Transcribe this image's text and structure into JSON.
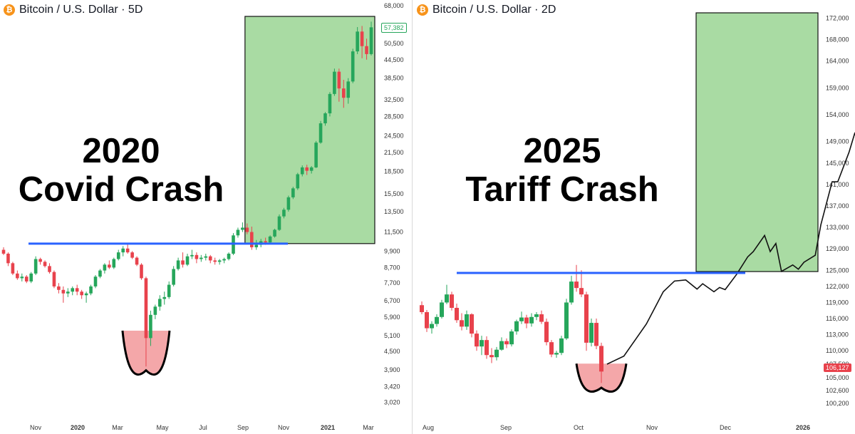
{
  "colors": {
    "up": "#26a65b",
    "down": "#e8424c",
    "blue_line": "#2962ff",
    "green_box": "#a9dba3",
    "red_bowl": "#f4a7a9",
    "btc_orange": "#f7931a"
  },
  "left": {
    "symbol_icon": "bitcoin-icon",
    "header": "Bitcoin / U.S. Dollar · 5D",
    "title_line1": "2020",
    "title_line2": "Covid Crash",
    "last_price_label": "57,382"
  },
  "right": {
    "symbol_icon": "bitcoin-icon",
    "header": "Bitcoin / U.S. Dollar · 2D",
    "title_line1": "2025",
    "title_line2": "Tariff Crash",
    "last_price_label": "106,127"
  },
  "chart_data": [
    {
      "type": "candlestick",
      "title": "Bitcoin / U.S. Dollar · 5D",
      "annotation": "2020 Covid Crash",
      "y_scale": "log",
      "ylim": [
        2800,
        68000
      ],
      "yticks": [
        68000,
        50500,
        44500,
        38500,
        32500,
        28500,
        24500,
        21500,
        18500,
        15500,
        13500,
        11500,
        9900,
        8700,
        7700,
        6700,
        5900,
        5100,
        4500,
        3900,
        3420,
        3020
      ],
      "ytick_labels": [
        "68,000",
        "50,500",
        "44,500",
        "38,500",
        "32,500",
        "28,500",
        "24,500",
        "21,500",
        "18,500",
        "15,500",
        "13,500",
        "11,500",
        "9,900",
        "8,700",
        "7,700",
        "6,700",
        "5,900",
        "5,100",
        "4,500",
        "3,900",
        "3,420",
        "3,020"
      ],
      "xticks": [
        "Nov",
        "2020",
        "Mar",
        "May",
        "Jul",
        "Sep",
        "Nov",
        "2021",
        "Mar"
      ],
      "resistance_level": 10500,
      "last_price": 57382,
      "candles": [
        [
          10000,
          10200,
          9600,
          9700
        ],
        [
          9700,
          9800,
          8800,
          9000
        ],
        [
          9000,
          9100,
          8200,
          8300
        ],
        [
          8300,
          8500,
          7900,
          8000
        ],
        [
          8000,
          8300,
          7800,
          8100
        ],
        [
          8100,
          8200,
          7700,
          7800
        ],
        [
          7800,
          8400,
          7700,
          8300
        ],
        [
          8300,
          9500,
          8200,
          9300
        ],
        [
          9300,
          9400,
          8900,
          9100
        ],
        [
          9100,
          9200,
          8700,
          8800
        ],
        [
          8800,
          9000,
          8300,
          8400
        ],
        [
          8400,
          8500,
          7400,
          7500
        ],
        [
          7500,
          7700,
          7100,
          7300
        ],
        [
          7300,
          7500,
          6600,
          7100
        ],
        [
          7100,
          7400,
          6900,
          7200
        ],
        [
          7200,
          7500,
          7000,
          7400
        ],
        [
          7400,
          7600,
          7000,
          7200
        ],
        [
          7200,
          7300,
          6800,
          7000
        ],
        [
          7000,
          7200,
          6600,
          7100
        ],
        [
          7100,
          7600,
          7000,
          7500
        ],
        [
          7500,
          8200,
          7400,
          8100
        ],
        [
          8100,
          8600,
          8000,
          8500
        ],
        [
          8500,
          9000,
          8300,
          8900
        ],
        [
          8900,
          9200,
          8600,
          8700
        ],
        [
          8700,
          9400,
          8600,
          9300
        ],
        [
          9300,
          10000,
          9200,
          9800
        ],
        [
          9800,
          10300,
          9500,
          10100
        ],
        [
          10100,
          10500,
          9700,
          9800
        ],
        [
          9800,
          9900,
          9300,
          9400
        ],
        [
          9400,
          9500,
          8800,
          8900
        ],
        [
          8900,
          9000,
          7900,
          8000
        ],
        [
          8000,
          8100,
          4000,
          5000
        ],
        [
          5000,
          6200,
          4700,
          6000
        ],
        [
          6000,
          6500,
          5800,
          6400
        ],
        [
          6400,
          7000,
          6200,
          6800
        ],
        [
          6800,
          7200,
          6500,
          6900
        ],
        [
          6900,
          7800,
          6800,
          7600
        ],
        [
          7600,
          8800,
          7500,
          8600
        ],
        [
          8600,
          9400,
          8500,
          9200
        ],
        [
          9200,
          9800,
          8700,
          8900
        ],
        [
          8900,
          9700,
          8800,
          9500
        ],
        [
          9500,
          10000,
          9300,
          9600
        ],
        [
          9600,
          9800,
          9000,
          9300
        ],
        [
          9300,
          9600,
          9100,
          9400
        ],
        [
          9400,
          9700,
          9200,
          9500
        ],
        [
          9500,
          9600,
          9000,
          9200
        ],
        [
          9200,
          9400,
          8900,
          9100
        ],
        [
          9100,
          9300,
          8900,
          9200
        ],
        [
          9200,
          9400,
          9000,
          9300
        ],
        [
          9300,
          9800,
          9200,
          9700
        ],
        [
          9700,
          11400,
          9600,
          11200
        ],
        [
          11200,
          11900,
          11000,
          11700
        ],
        [
          11700,
          12400,
          11500,
          11900
        ],
        [
          11900,
          12300,
          11300,
          11500
        ],
        [
          11500,
          12000,
          10000,
          10200
        ],
        [
          10200,
          10800,
          10000,
          10400
        ],
        [
          10400,
          10900,
          10200,
          10700
        ],
        [
          10700,
          11000,
          10400,
          10600
        ],
        [
          10600,
          11200,
          10500,
          11100
        ],
        [
          11100,
          11800,
          11000,
          11700
        ],
        [
          11700,
          13200,
          11600,
          13000
        ],
        [
          13000,
          13900,
          12800,
          13700
        ],
        [
          13700,
          15300,
          13500,
          15100
        ],
        [
          15100,
          16400,
          14900,
          16200
        ],
        [
          16200,
          18300,
          16000,
          18100
        ],
        [
          18100,
          19400,
          17800,
          19100
        ],
        [
          19100,
          19500,
          18000,
          18600
        ],
        [
          18600,
          19300,
          18200,
          19100
        ],
        [
          19100,
          23500,
          19000,
          23200
        ],
        [
          23200,
          27500,
          23000,
          27000
        ],
        [
          27000,
          29500,
          26500,
          29200
        ],
        [
          29200,
          34500,
          28500,
          34000
        ],
        [
          34000,
          41500,
          33500,
          40500
        ],
        [
          40500,
          41500,
          32000,
          35500
        ],
        [
          35500,
          38000,
          30500,
          33000
        ],
        [
          33000,
          38500,
          31500,
          37500
        ],
        [
          37500,
          48500,
          37000,
          47500
        ],
        [
          47500,
          57500,
          46500,
          55500
        ],
        [
          55500,
          58000,
          45000,
          49500
        ],
        [
          49500,
          52500,
          44500,
          46500
        ],
        [
          46500,
          60000,
          46000,
          57382
        ]
      ]
    },
    {
      "type": "candlestick",
      "title": "Bitcoin / U.S. Dollar · 2D",
      "annotation": "2025 Tariff Crash",
      "y_scale": "linear",
      "ylim": [
        99000,
        173000
      ],
      "yticks": [
        172000,
        168000,
        164000,
        159000,
        154000,
        149000,
        145000,
        141000,
        137000,
        133000,
        129000,
        125000,
        122000,
        119000,
        116000,
        113000,
        110000,
        107500,
        105000,
        102600,
        100200
      ],
      "ytick_labels": [
        "172,000",
        "168,000",
        "164,000",
        "159,000",
        "154,000",
        "149,000",
        "145,000",
        "141,000",
        "137,000",
        "133,000",
        "129,000",
        "125,000",
        "122,000",
        "119,000",
        "116,000",
        "113,000",
        "110,000",
        "107,500",
        "105,000",
        "102,600",
        "100,200"
      ],
      "xticks": [
        "Aug",
        "Sep",
        "Oct",
        "Nov",
        "Dec",
        "2026"
      ],
      "resistance_level": 124500,
      "last_price": 106127,
      "candles": [
        [
          118500,
          119200,
          116800,
          117200
        ],
        [
          117200,
          117600,
          113500,
          114200
        ],
        [
          114200,
          115500,
          113200,
          115000
        ],
        [
          115000,
          116800,
          114500,
          116300
        ],
        [
          116300,
          119500,
          116000,
          119000
        ],
        [
          119000,
          122300,
          118700,
          120500
        ],
        [
          120500,
          121000,
          117500,
          118000
        ],
        [
          118000,
          118800,
          115200,
          115700
        ],
        [
          115700,
          117000,
          113800,
          114500
        ],
        [
          114500,
          117500,
          113900,
          116800
        ],
        [
          116800,
          117000,
          112500,
          113200
        ],
        [
          113200,
          113800,
          110000,
          110800
        ],
        [
          110800,
          112800,
          109200,
          112000
        ],
        [
          112000,
          112700,
          108500,
          109200
        ],
        [
          109200,
          110500,
          107700,
          108800
        ],
        [
          108800,
          110700,
          108200,
          110200
        ],
        [
          110200,
          112500,
          110000,
          111800
        ],
        [
          111800,
          112300,
          110500,
          111200
        ],
        [
          111200,
          114000,
          110800,
          113600
        ],
        [
          113600,
          115800,
          113000,
          115500
        ],
        [
          115500,
          117300,
          115000,
          116200
        ],
        [
          116200,
          116700,
          114200,
          115100
        ],
        [
          115100,
          117000,
          114500,
          116300
        ],
        [
          116300,
          117200,
          115700,
          116800
        ],
        [
          116800,
          117500,
          115000,
          115400
        ],
        [
          115400,
          116000,
          111000,
          111600
        ],
        [
          111600,
          112000,
          108800,
          109300
        ],
        [
          109300,
          110000,
          108700,
          109600
        ],
        [
          109600,
          112800,
          109200,
          112300
        ],
        [
          112300,
          119700,
          112000,
          119000
        ],
        [
          119000,
          124000,
          118600,
          122900
        ],
        [
          122900,
          126000,
          121000,
          121700
        ],
        [
          121700,
          125000,
          120000,
          120500
        ],
        [
          120500,
          121000,
          110000,
          111500
        ],
        [
          111500,
          116000,
          110800,
          115200
        ],
        [
          115200,
          116000,
          110300,
          110900
        ],
        [
          110900,
          111500,
          104000,
          106127
        ]
      ],
      "line_path": [
        [
          1,
          107500
        ],
        [
          4,
          109000
        ],
        [
          6,
          112000
        ],
        [
          8,
          115000
        ],
        [
          10,
          119000
        ],
        [
          11,
          121000
        ],
        [
          13,
          123000
        ],
        [
          15,
          123200
        ],
        [
          17,
          121500
        ],
        [
          18,
          122500
        ],
        [
          20,
          121000
        ],
        [
          21,
          121800
        ],
        [
          22,
          121400
        ],
        [
          24,
          124200
        ],
        [
          26,
          127500
        ],
        [
          27,
          128500
        ],
        [
          29,
          131500
        ],
        [
          30,
          128500
        ],
        [
          31,
          130000
        ],
        [
          32,
          124800
        ],
        [
          34,
          126000
        ],
        [
          35,
          125200
        ],
        [
          36,
          126500
        ],
        [
          38,
          127800
        ],
        [
          39,
          133500
        ],
        [
          41,
          141500
        ],
        [
          42,
          141500
        ],
        [
          44,
          147000
        ],
        [
          45,
          150500
        ],
        [
          47,
          146500
        ],
        [
          49,
          157000
        ],
        [
          50,
          159500
        ],
        [
          51,
          168000
        ],
        [
          52,
          168500
        ],
        [
          53,
          176000
        ]
      ]
    }
  ]
}
